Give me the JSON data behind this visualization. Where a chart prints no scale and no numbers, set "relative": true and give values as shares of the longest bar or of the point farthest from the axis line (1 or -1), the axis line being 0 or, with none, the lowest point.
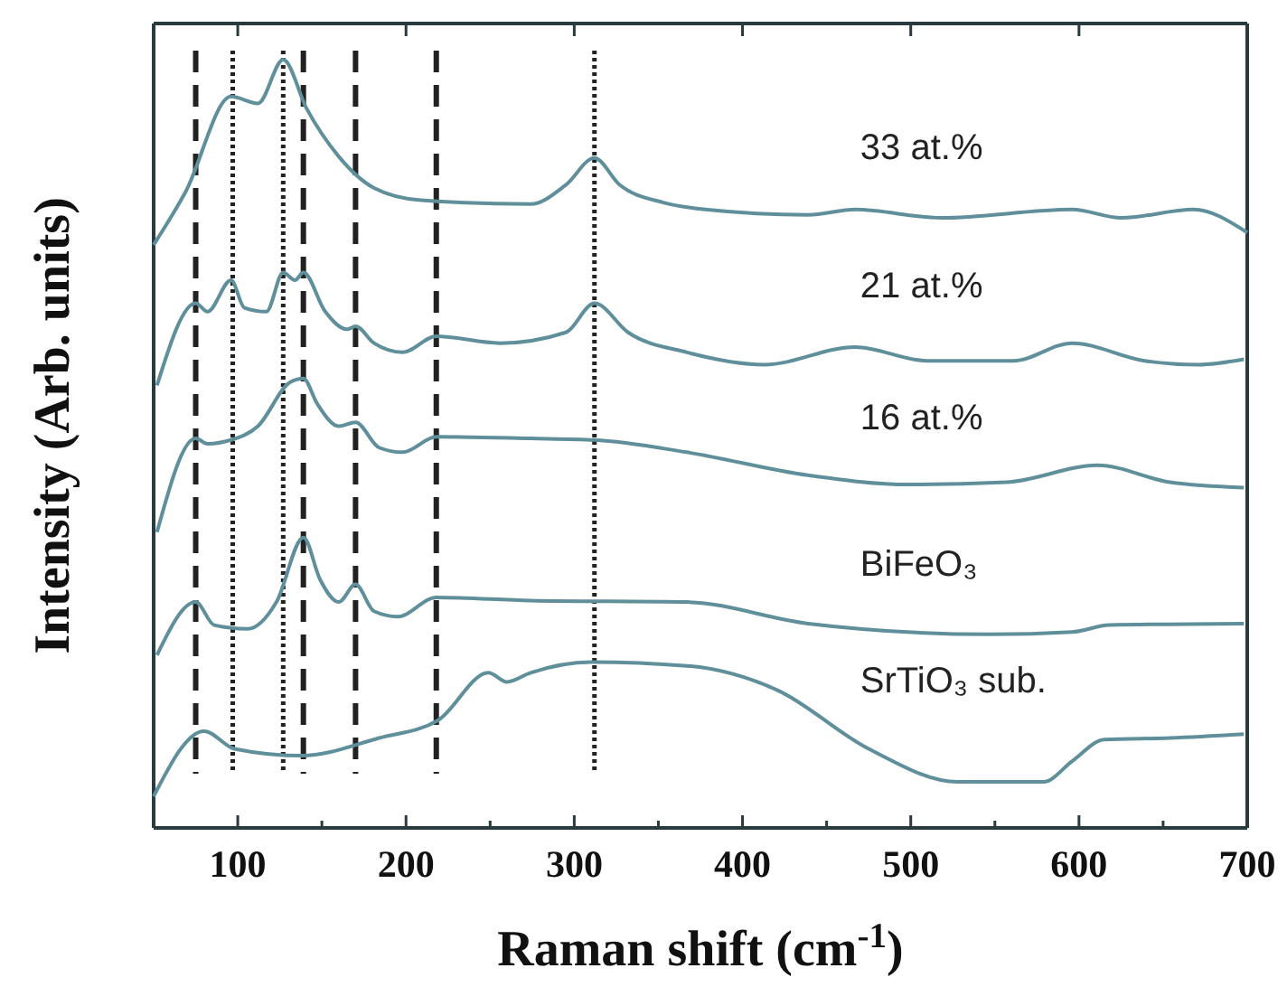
{
  "chart_data": {
    "type": "line",
    "relative": true,
    "xlabel": "Raman shift (cm$^{-1}$)",
    "ylabel": "Intensity (Arb. units)",
    "xlim": [
      50,
      700
    ],
    "xticks": [
      100,
      200,
      300,
      400,
      500,
      600,
      700
    ],
    "grid": false,
    "marker": "none",
    "line_style": "solid",
    "tick_labels": "x",
    "ref_lines": [
      {
        "axis": "x",
        "value": 97,
        "line_style": "dotted",
        "color": "#222222"
      },
      {
        "axis": "x",
        "value": 127,
        "line_style": "dotted",
        "color": "#222222"
      },
      {
        "axis": "x",
        "value": 312,
        "line_style": "dotted",
        "color": "#222222"
      },
      {
        "axis": "x",
        "value": 75,
        "line_style": "dashed",
        "color": "#222222"
      },
      {
        "axis": "x",
        "value": 139,
        "line_style": "dashed",
        "color": "#222222"
      },
      {
        "axis": "x",
        "value": 170,
        "line_style": "dashed",
        "color": "#222222"
      },
      {
        "axis": "x",
        "value": 218,
        "line_style": "dashed",
        "color": "#222222"
      }
    ],
    "series": [
      {
        "name": "33 at.%",
        "color": "#5f8f9a",
        "x": [
          50,
          69,
          96,
          112,
          127,
          141,
          160,
          181,
          209,
          274,
          295,
          312,
          327,
          353,
          378,
          439,
          467,
          518,
          596,
          625,
          668,
          700
        ],
        "values": [
          0.759,
          0.828,
          0.952,
          0.943,
          1,
          0.936,
          0.874,
          0.833,
          0.817,
          0.812,
          0.837,
          0.872,
          0.837,
          0.814,
          0.805,
          0.798,
          0.805,
          0.794,
          0.805,
          0.794,
          0.805,
          0.775
        ]
      },
      {
        "name": "21 at.%",
        "color": "#5f8f9a",
        "x": [
          52,
          75,
          82,
          96,
          104,
          117,
          127,
          134,
          139,
          152,
          165,
          170,
          181,
          198,
          218,
          256,
          295,
          312,
          332,
          367,
          413,
          467,
          510,
          561,
          596,
          639,
          671,
          698
        ],
        "values": [
          0.576,
          0.683,
          0.672,
          0.713,
          0.677,
          0.672,
          0.723,
          0.713,
          0.723,
          0.672,
          0.649,
          0.653,
          0.631,
          0.619,
          0.64,
          0.631,
          0.645,
          0.683,
          0.645,
          0.619,
          0.603,
          0.626,
          0.608,
          0.608,
          0.631,
          0.608,
          0.603,
          0.61
        ]
      },
      {
        "name": "16 at.%",
        "color": "#5f8f9a",
        "x": [
          52,
          75,
          82,
          96,
          112,
          131,
          139,
          147,
          160,
          170,
          184,
          198,
          218,
          274,
          312,
          367,
          439,
          499,
          557,
          611,
          654,
          698
        ],
        "values": [
          0.385,
          0.507,
          0.5,
          0.505,
          0.523,
          0.58,
          0.585,
          0.553,
          0.523,
          0.528,
          0.495,
          0.489,
          0.509,
          0.507,
          0.505,
          0.489,
          0.459,
          0.447,
          0.45,
          0.472,
          0.45,
          0.443
        ]
      },
      {
        "name": "BiFeO₃",
        "color": "#5f8f9a",
        "x": [
          52,
          75,
          86,
          106,
          123,
          139,
          149,
          160,
          170,
          181,
          195,
          218,
          274,
          367,
          439,
          547,
          596,
          618,
          698
        ],
        "values": [
          0.225,
          0.294,
          0.264,
          0.259,
          0.294,
          0.378,
          0.323,
          0.294,
          0.317,
          0.282,
          0.275,
          0.3,
          0.296,
          0.294,
          0.266,
          0.252,
          0.255,
          0.264,
          0.266
        ]
      },
      {
        "name": "SrTiO₃ sub.",
        "color": "#5f8f9a",
        "x": [
          50,
          80,
          98,
          138,
          184,
          219,
          249,
          260,
          274,
          310,
          367,
          421,
          475,
          528,
          579,
          596,
          615,
          654,
          698
        ],
        "values": [
          0.041,
          0.126,
          0.103,
          0.094,
          0.117,
          0.14,
          0.202,
          0.19,
          0.202,
          0.216,
          0.211,
          0.179,
          0.103,
          0.06,
          0.06,
          0.087,
          0.115,
          0.117,
          0.122
        ]
      }
    ]
  }
}
